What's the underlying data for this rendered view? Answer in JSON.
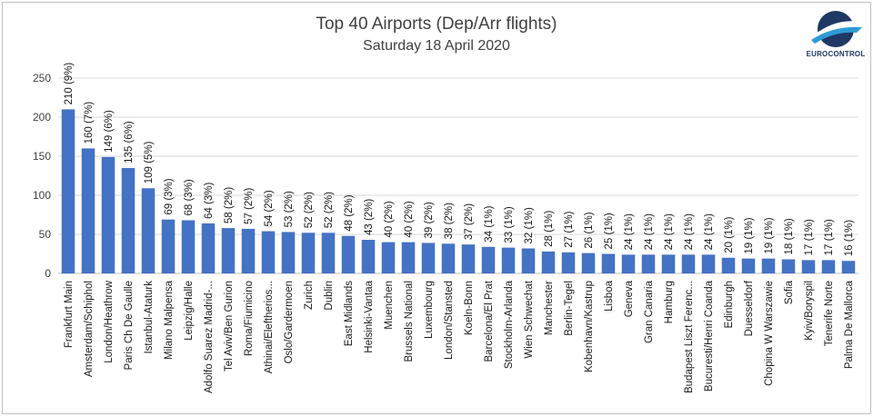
{
  "chart_data": {
    "type": "bar",
    "title": "Top 40 Airports (Dep/Arr flights)",
    "subtitle": "Saturday 18 April 2020",
    "xlabel": "",
    "ylabel": "",
    "ylim": [
      0,
      250
    ],
    "yticks": [
      0,
      50,
      100,
      150,
      200,
      250
    ],
    "grid": true,
    "legend": "none",
    "bar_color": "#4472c4",
    "categories": [
      "Frankfurt Main",
      "Amsterdam/Schiphol",
      "London/Heathrow",
      "Paris Ch De Gaulle",
      "Istanbul-Ataturk",
      "Milano Malpensa",
      "Leipzig/Halle",
      "Adolfo Suarez Madrid-...",
      "Tel Aviv/Ben Gurion",
      "Roma/Fiumicino",
      "Athinai/Eleftherios...",
      "Oslo/Gardermoen",
      "Zurich",
      "Dublin",
      "East Midlands",
      "Helsinki-Vantaa",
      "Muenchen",
      "Brussels National",
      "Luxembourg",
      "London/Stansted",
      "Koeln-Bonn",
      "Barcelona/El Prat",
      "Stockholm-Arlanda",
      "Wien Schwechat",
      "Manchester",
      "Berlin-Tegel",
      "Kobenhavn/Kastrup",
      "Lisboa",
      "Geneva",
      "Gran Canaria",
      "Hamburg",
      "Budapest Liszt Ferenc...",
      "Bucuresti/Henri Coanda",
      "Edinburgh",
      "Duesseldorf",
      "Chopina W Warszawie",
      "Sofia",
      "Kyiv/Boryspil",
      "Tenerife Norte",
      "Palma De Mallorca"
    ],
    "values": [
      210,
      160,
      149,
      135,
      109,
      69,
      68,
      64,
      58,
      57,
      54,
      53,
      52,
      52,
      48,
      43,
      40,
      40,
      39,
      38,
      37,
      34,
      33,
      32,
      28,
      27,
      26,
      25,
      24,
      24,
      24,
      24,
      24,
      20,
      19,
      19,
      18,
      17,
      17,
      16
    ],
    "data_labels": [
      "210 (9%)",
      "160 (7%)",
      "149 (6%)",
      "135 (6%)",
      "109 (5%)",
      "69 (3%)",
      "68 (3%)",
      "64 (3%)",
      "58 (2%)",
      "57 (2%)",
      "54 (2%)",
      "53 (2%)",
      "52 (2%)",
      "52 (2%)",
      "48 (2%)",
      "43 (2%)",
      "40 (2%)",
      "40 (2%)",
      "39 (2%)",
      "38 (2%)",
      "37 (2%)",
      "34 (1%)",
      "33 (1%)",
      "32 (1%)",
      "28 (1%)",
      "27 (1%)",
      "26 (1%)",
      "25 (1%)",
      "24 (1%)",
      "24 (1%)",
      "24 (1%)",
      "24 (1%)",
      "24 (1%)",
      "20 (1%)",
      "19 (1%)",
      "19 (1%)",
      "18 (1%)",
      "17 (1%)",
      "17 (1%)",
      "16 (1%)"
    ]
  },
  "logo": {
    "text": "EUROCONTROL",
    "icon": "eurocontrol-logo-icon",
    "colors": [
      "#1f3864",
      "#2e9bd6"
    ]
  }
}
